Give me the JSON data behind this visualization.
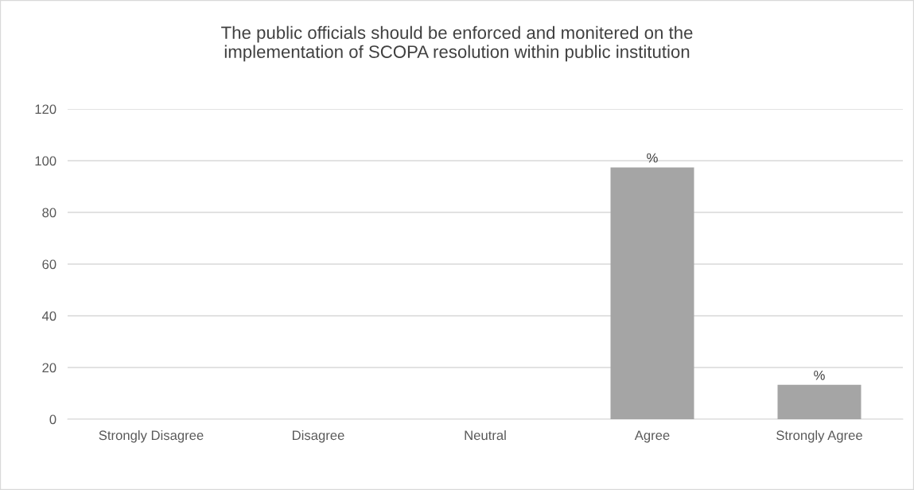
{
  "chart_data": {
    "type": "bar",
    "title": "The public officials should be enforced and monitered on the\nimplementation of SCOPA resolution within public institution",
    "categories": [
      "Strongly Disagree",
      "Disagree",
      "Neutral",
      "Agree",
      "Strongly Agree"
    ],
    "values": [
      0,
      0,
      0,
      97.4,
      13.3
    ],
    "value_labels": [
      null,
      null,
      null,
      "%",
      "%"
    ],
    "color": "#a5a5a5",
    "ylim": [
      0,
      120
    ],
    "yticks": [
      0,
      20,
      40,
      60,
      80,
      100,
      120
    ],
    "grid": "y"
  }
}
